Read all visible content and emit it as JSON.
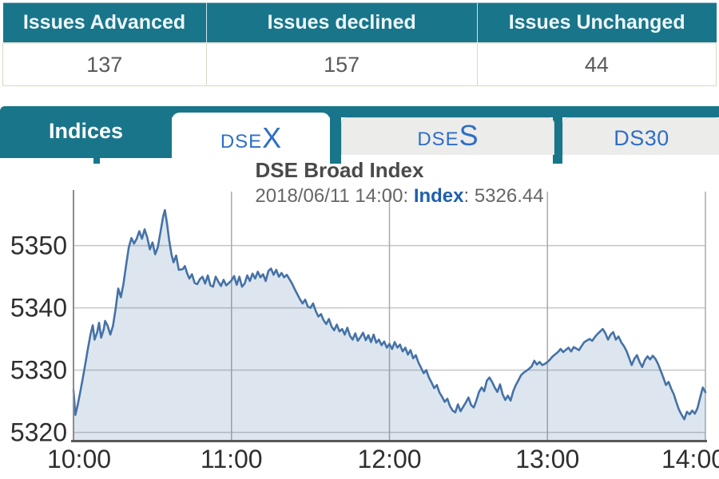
{
  "summary_table": {
    "columns": [
      {
        "header": "Issues Advanced",
        "value": "137"
      },
      {
        "header": "Issues declined",
        "value": "157"
      },
      {
        "header": "Issues Unchanged",
        "value": "44"
      }
    ]
  },
  "tabs": {
    "bar_label": "Indices",
    "items": [
      {
        "prefix": "DSE",
        "suffix": "X",
        "active": true
      },
      {
        "prefix": "DSE",
        "suffix": "S",
        "active": false
      },
      {
        "prefix": "DS30",
        "suffix": "",
        "active": false
      }
    ]
  },
  "colors": {
    "teal": "#19758a",
    "tab_text_blue": "#2e6ec6",
    "line_blue": "#4572a7",
    "subtitle_label_blue": "#1f5fad"
  },
  "chart_data": {
    "type": "area",
    "title": "DSE Broad Index",
    "subtitle_parts": [
      "2018/06/11 14:00: ",
      "Index",
      ": 5326.44"
    ],
    "x_ticks": [
      "10:00",
      "11:00",
      "12:00",
      "13:00",
      "14:00"
    ],
    "x_tick_minutes": [
      0,
      60,
      120,
      180,
      240
    ],
    "y_ticks": [
      5320,
      5330,
      5340,
      5350
    ],
    "ylim": [
      5318.6,
      5358.6
    ],
    "xlim_minutes": [
      0,
      240
    ],
    "grid": true,
    "legend": "none",
    "line_color": "#4572a7",
    "fill_color": "rgba(69,114,167,0.18)",
    "grid_color_h": "#c6c6c6",
    "grid_color_v": "#aaaaaa",
    "axis_color": "#595959",
    "tick_label_color": "#2f2f2f",
    "series": [
      {
        "name": "Index",
        "points": [
          [
            0,
            5326.8
          ],
          [
            0.7,
            5322.8
          ],
          [
            1.5,
            5324.2
          ],
          [
            2.5,
            5326.3
          ],
          [
            3.5,
            5328.6
          ],
          [
            4.5,
            5331.0
          ],
          [
            5.5,
            5333.5
          ],
          [
            6.5,
            5335.8
          ],
          [
            7.3,
            5337.2
          ],
          [
            8,
            5334.9
          ],
          [
            9,
            5336.1
          ],
          [
            9.7,
            5337.6
          ],
          [
            10.5,
            5335.2
          ],
          [
            11.5,
            5336.6
          ],
          [
            12,
            5337.9
          ],
          [
            13,
            5337.1
          ],
          [
            14,
            5335.7
          ],
          [
            15,
            5337.1
          ],
          [
            16,
            5339.8
          ],
          [
            17,
            5343.1
          ],
          [
            18,
            5341.7
          ],
          [
            19,
            5343.9
          ],
          [
            20,
            5346.9
          ],
          [
            21,
            5349.7
          ],
          [
            22,
            5351.2
          ],
          [
            23,
            5350.3
          ],
          [
            24,
            5351.1
          ],
          [
            25,
            5352.3
          ],
          [
            26,
            5351.1
          ],
          [
            27,
            5352.6
          ],
          [
            28,
            5351.3
          ],
          [
            29,
            5349.4
          ],
          [
            30,
            5350.5
          ],
          [
            31,
            5348.6
          ],
          [
            32,
            5349.7
          ],
          [
            33,
            5352.1
          ],
          [
            34,
            5354.6
          ],
          [
            34.7,
            5355.7
          ],
          [
            35.5,
            5353.6
          ],
          [
            36.3,
            5351.0
          ],
          [
            37.2,
            5348.6
          ],
          [
            38,
            5347.3
          ],
          [
            39,
            5348.4
          ],
          [
            40,
            5346.1
          ],
          [
            41.5,
            5346.2
          ],
          [
            42.3,
            5346.7
          ],
          [
            43.2,
            5345.5
          ],
          [
            44,
            5344.7
          ],
          [
            45,
            5345.4
          ],
          [
            46,
            5344.0
          ],
          [
            47,
            5343.8
          ],
          [
            48,
            5344.6
          ],
          [
            49,
            5345.0
          ],
          [
            50,
            5343.9
          ],
          [
            51,
            5345.2
          ],
          [
            52,
            5343.6
          ],
          [
            53,
            5343.4
          ],
          [
            54,
            5345.0
          ],
          [
            55,
            5344.2
          ],
          [
            56,
            5343.5
          ],
          [
            57,
            5344.5
          ],
          [
            58,
            5343.6
          ],
          [
            59,
            5344.0
          ],
          [
            60,
            5344.4
          ],
          [
            61,
            5345.1
          ],
          [
            62,
            5343.7
          ],
          [
            63,
            5345.0
          ],
          [
            64,
            5343.4
          ],
          [
            65,
            5343.9
          ],
          [
            66,
            5345.2
          ],
          [
            67,
            5344.3
          ],
          [
            68,
            5345.5
          ],
          [
            69,
            5344.7
          ],
          [
            70,
            5345.8
          ],
          [
            71,
            5344.9
          ],
          [
            72,
            5345.4
          ],
          [
            73,
            5344.3
          ],
          [
            74,
            5345.9
          ],
          [
            75,
            5346.3
          ],
          [
            76,
            5345.3
          ],
          [
            77,
            5346.1
          ],
          [
            78,
            5345.0
          ],
          [
            79,
            5345.6
          ],
          [
            80,
            5344.9
          ],
          [
            81,
            5345.3
          ],
          [
            82,
            5344.6
          ],
          [
            83,
            5343.9
          ],
          [
            84,
            5343.0
          ],
          [
            85,
            5342.2
          ],
          [
            86,
            5341.4
          ],
          [
            87,
            5340.7
          ],
          [
            88,
            5341.3
          ],
          [
            89,
            5340.2
          ],
          [
            90,
            5340.0
          ],
          [
            91,
            5340.7
          ],
          [
            92,
            5339.5
          ],
          [
            93,
            5338.6
          ],
          [
            94,
            5339.0
          ],
          [
            95,
            5338.0
          ],
          [
            96,
            5337.4
          ],
          [
            97,
            5338.2
          ],
          [
            98,
            5337.0
          ],
          [
            99,
            5336.4
          ],
          [
            100,
            5337.3
          ],
          [
            101,
            5336.2
          ],
          [
            102,
            5336.6
          ],
          [
            103,
            5335.7
          ],
          [
            104,
            5336.8
          ],
          [
            105,
            5335.5
          ],
          [
            106,
            5334.9
          ],
          [
            107,
            5335.9
          ],
          [
            108,
            5334.7
          ],
          [
            109,
            5335.3
          ],
          [
            110,
            5336.0
          ],
          [
            111,
            5334.8
          ],
          [
            112,
            5335.6
          ],
          [
            113,
            5334.5
          ],
          [
            114,
            5335.7
          ],
          [
            115,
            5334.4
          ],
          [
            116,
            5334.9
          ],
          [
            117,
            5334.0
          ],
          [
            118,
            5334.6
          ],
          [
            119,
            5333.6
          ],
          [
            120,
            5334.2
          ],
          [
            121,
            5333.4
          ],
          [
            122,
            5334.5
          ],
          [
            123,
            5333.6
          ],
          [
            124,
            5334.1
          ],
          [
            125,
            5333.0
          ],
          [
            126,
            5333.6
          ],
          [
            127,
            5332.5
          ],
          [
            128,
            5333.2
          ],
          [
            129,
            5331.9
          ],
          [
            130,
            5332.4
          ],
          [
            131,
            5331.2
          ],
          [
            132,
            5330.4
          ],
          [
            133,
            5329.5
          ],
          [
            134,
            5330.0
          ],
          [
            135,
            5328.8
          ],
          [
            136,
            5328.0
          ],
          [
            137,
            5327.1
          ],
          [
            138,
            5327.6
          ],
          [
            139,
            5326.4
          ],
          [
            140,
            5325.7
          ],
          [
            141,
            5324.9
          ],
          [
            142,
            5325.4
          ],
          [
            143,
            5324.2
          ],
          [
            144,
            5323.5
          ],
          [
            145,
            5323.2
          ],
          [
            146,
            5324.5
          ],
          [
            147,
            5323.4
          ],
          [
            148,
            5324.1
          ],
          [
            149,
            5324.8
          ],
          [
            150,
            5325.6
          ],
          [
            151,
            5324.4
          ],
          [
            152,
            5324.0
          ],
          [
            153,
            5325.1
          ],
          [
            154,
            5326.5
          ],
          [
            155,
            5327.2
          ],
          [
            156,
            5326.6
          ],
          [
            157,
            5328.3
          ],
          [
            158,
            5328.8
          ],
          [
            159,
            5328.1
          ],
          [
            160,
            5327.2
          ],
          [
            161,
            5326.5
          ],
          [
            162,
            5327.7
          ],
          [
            163,
            5326.1
          ],
          [
            164,
            5325.2
          ],
          [
            165,
            5325.9
          ],
          [
            166,
            5325.1
          ],
          [
            167,
            5326.6
          ],
          [
            168,
            5327.6
          ],
          [
            169,
            5328.4
          ],
          [
            170,
            5329.2
          ],
          [
            171,
            5329.6
          ],
          [
            172,
            5329.9
          ],
          [
            173,
            5330.2
          ],
          [
            174,
            5330.6
          ],
          [
            175,
            5331.5
          ],
          [
            176,
            5330.9
          ],
          [
            177,
            5331.3
          ],
          [
            178,
            5330.8
          ],
          [
            179,
            5331.0
          ],
          [
            180,
            5331.3
          ],
          [
            181,
            5331.7
          ],
          [
            182,
            5332.2
          ],
          [
            184,
            5332.9
          ],
          [
            185,
            5333.4
          ],
          [
            186,
            5332.9
          ],
          [
            188,
            5333.6
          ],
          [
            189,
            5333.0
          ],
          [
            190,
            5333.7
          ],
          [
            192,
            5333.2
          ],
          [
            193,
            5333.9
          ],
          [
            194,
            5334.5
          ],
          [
            196,
            5335.0
          ],
          [
            197,
            5334.7
          ],
          [
            198,
            5335.3
          ],
          [
            199,
            5335.8
          ],
          [
            200,
            5336.2
          ],
          [
            201,
            5336.6
          ],
          [
            202,
            5335.9
          ],
          [
            203,
            5334.9
          ],
          [
            204,
            5335.7
          ],
          [
            205,
            5336.1
          ],
          [
            206,
            5334.9
          ],
          [
            207,
            5335.4
          ],
          [
            208,
            5334.5
          ],
          [
            209,
            5333.9
          ],
          [
            210,
            5333.1
          ],
          [
            211,
            5332.0
          ],
          [
            212,
            5330.8
          ],
          [
            213,
            5331.8
          ],
          [
            214,
            5332.4
          ],
          [
            215,
            5331.3
          ],
          [
            216,
            5330.5
          ],
          [
            217,
            5331.6
          ],
          [
            218,
            5332.2
          ],
          [
            219,
            5331.7
          ],
          [
            220,
            5332.3
          ],
          [
            221,
            5331.8
          ],
          [
            222,
            5331.0
          ],
          [
            223,
            5329.9
          ],
          [
            224,
            5328.8
          ],
          [
            225,
            5327.6
          ],
          [
            226,
            5328.1
          ],
          [
            227,
            5327.0
          ],
          [
            228,
            5326.1
          ],
          [
            229,
            5324.8
          ],
          [
            230,
            5323.6
          ],
          [
            231,
            5322.8
          ],
          [
            232,
            5322.1
          ],
          [
            233,
            5323.3
          ],
          [
            234,
            5322.9
          ],
          [
            235,
            5323.5
          ],
          [
            236,
            5323.0
          ],
          [
            237,
            5323.9
          ],
          [
            238,
            5325.6
          ],
          [
            239,
            5327.2
          ],
          [
            240,
            5326.44
          ]
        ]
      }
    ]
  }
}
